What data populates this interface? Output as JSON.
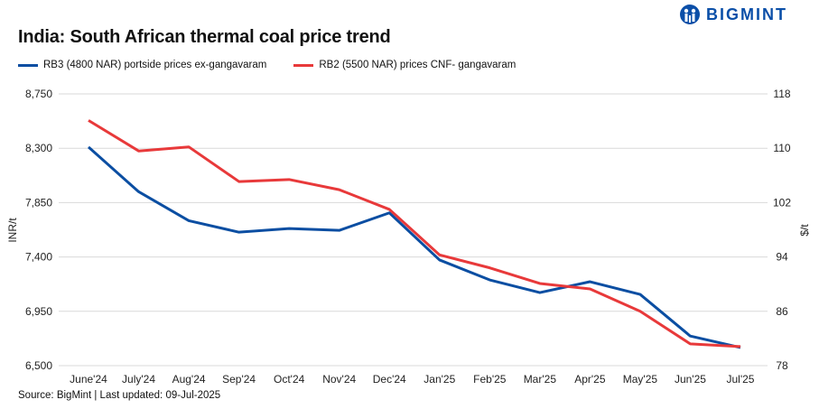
{
  "logo": {
    "text": "BIGMINT",
    "color": "#0b4fa8"
  },
  "source": "Source: BigMint | Last updated: 09-Jul-2025",
  "chart_data": {
    "type": "line",
    "title": "India: South African thermal coal price trend",
    "categories": [
      "June'24",
      "July'24",
      "Aug'24",
      "Sep'24",
      "Oct'24",
      "Nov'24",
      "Dec'24",
      "Jan'25",
      "Feb'25",
      "Mar'25",
      "Apr'25",
      "May'25",
      "Jun'25",
      "Jul'25"
    ],
    "ylabel": "INR/t",
    "y2label": "$/t",
    "ylim": [
      6500,
      8750
    ],
    "yticks": [
      "6,500",
      "6,950",
      "7,400",
      "7,850",
      "8,300",
      "8,750"
    ],
    "y2lim": [
      78,
      118
    ],
    "y2ticks": [
      "78",
      "86",
      "94",
      "102",
      "110",
      "118"
    ],
    "grid": true,
    "legend_position": "top-left",
    "series": [
      {
        "name": "RB3 (4800 NAR) portside prices ex-gangavaram",
        "axis": "left",
        "color": "#0b4ea2",
        "values": [
          8310,
          7940,
          7700,
          7605,
          7635,
          7620,
          7765,
          7375,
          7210,
          7105,
          7195,
          7090,
          6745,
          6650
        ]
      },
      {
        "name": "RB2 (5500 NAR) prices CNF- gangavaram",
        "axis": "right",
        "color": "#e8393a",
        "values": [
          114.1,
          109.6,
          110.2,
          105.1,
          105.4,
          103.9,
          101.0,
          94.3,
          92.4,
          90.1,
          89.3,
          86.0,
          81.2,
          80.8
        ]
      }
    ]
  }
}
